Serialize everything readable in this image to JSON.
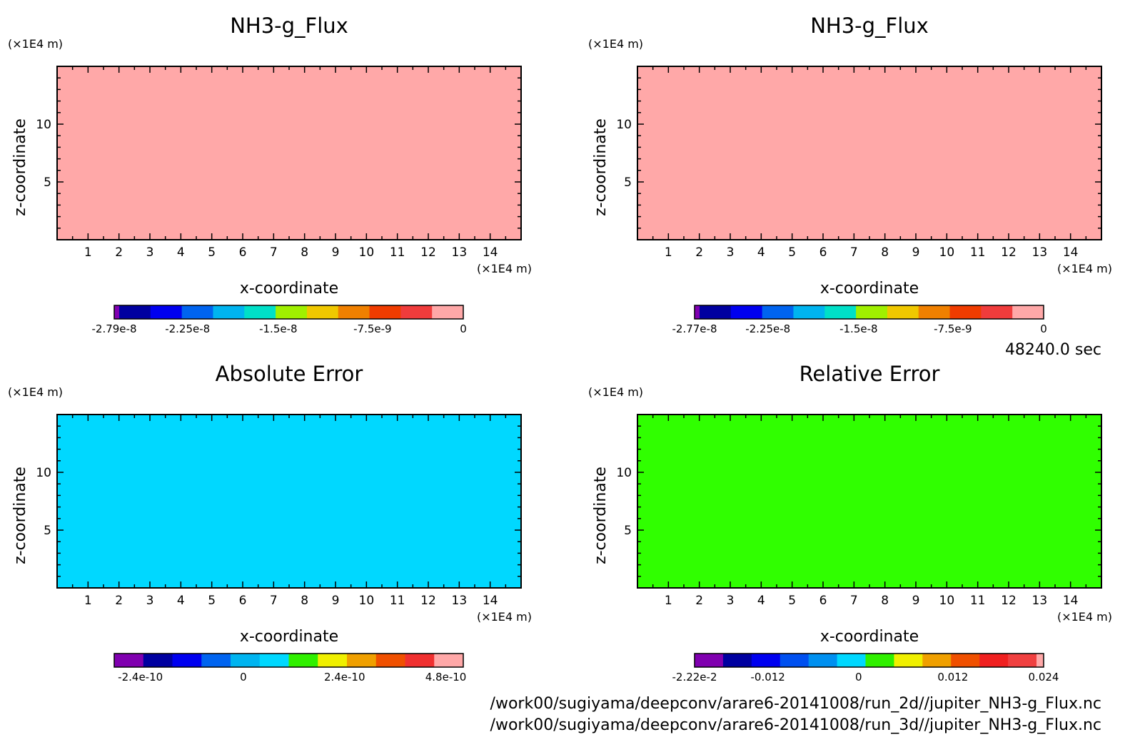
{
  "time_label": "48240.0 sec",
  "file_paths": [
    "/work00/sugiyama/deepconv/arare6-20141008/run_2d//jupiter_NH3-g_Flux.nc",
    "/work00/sugiyama/deepconv/arare6-20141008/run_3d//jupiter_NH3-g_Flux.nc"
  ],
  "chart_data": [
    {
      "type": "heatmap",
      "title": "NH3-g_Flux",
      "xlabel": "x-coordinate",
      "ylabel": "z-coordinate",
      "x_unit": "(×1E4 m)",
      "y_unit": "(×1E4 m)",
      "xlim": [
        0,
        15
      ],
      "ylim": [
        0,
        15
      ],
      "x_ticks": [
        "1",
        "2",
        "3",
        "4",
        "5",
        "6",
        "7",
        "8",
        "9",
        "10",
        "11",
        "12",
        "13",
        "14"
      ],
      "y_ticks": [
        "5",
        "10"
      ],
      "field_color": "#ffa8a8",
      "colorbar": {
        "colors": [
          "#8000b0",
          "#0000a0",
          "#0000f0",
          "#0064f0",
          "#00b4f0",
          "#00e0c8",
          "#a0f000",
          "#f0c800",
          "#f08000",
          "#f03c00",
          "#f03c3c",
          "#ffa8a8"
        ],
        "labels": [
          "-2.79e-8",
          "-2.25e-8",
          "-1.5e-8",
          "-7.5e-9",
          "0"
        ]
      }
    },
    {
      "type": "heatmap",
      "title": "NH3-g_Flux",
      "xlabel": "x-coordinate",
      "ylabel": "z-coordinate",
      "x_unit": "(×1E4 m)",
      "y_unit": "(×1E4 m)",
      "xlim": [
        0,
        15
      ],
      "ylim": [
        0,
        15
      ],
      "x_ticks": [
        "1",
        "2",
        "3",
        "4",
        "5",
        "6",
        "7",
        "8",
        "9",
        "10",
        "11",
        "12",
        "13",
        "14"
      ],
      "y_ticks": [
        "5",
        "10"
      ],
      "field_color": "#ffa8a8",
      "colorbar": {
        "colors": [
          "#8000b0",
          "#0000a0",
          "#0000f0",
          "#0064f0",
          "#00b4f0",
          "#00e0c8",
          "#a0f000",
          "#f0c800",
          "#f08000",
          "#f03c00",
          "#f03c3c",
          "#ffa8a8"
        ],
        "labels": [
          "-2.77e-8",
          "-2.25e-8",
          "-1.5e-8",
          "-7.5e-9",
          "0"
        ]
      }
    },
    {
      "type": "heatmap",
      "title": "Absolute Error",
      "xlabel": "x-coordinate",
      "ylabel": "z-coordinate",
      "x_unit": "(×1E4 m)",
      "y_unit": "(×1E4 m)",
      "xlim": [
        0,
        15
      ],
      "ylim": [
        0,
        15
      ],
      "x_ticks": [
        "1",
        "2",
        "3",
        "4",
        "5",
        "6",
        "7",
        "8",
        "9",
        "10",
        "11",
        "12",
        "13",
        "14"
      ],
      "y_ticks": [
        "5",
        "10"
      ],
      "field_color": "#00d8ff",
      "colorbar": {
        "colors": [
          "#8000b0",
          "#0000a0",
          "#0000f0",
          "#0064f0",
          "#00b4f0",
          "#00d8ff",
          "#30f000",
          "#f0f000",
          "#f0a000",
          "#f05000",
          "#f03030",
          "#ffa8a8"
        ],
        "labels": [
          "-2.4e-10",
          "0",
          "2.4e-10",
          "4.8e-10"
        ]
      }
    },
    {
      "type": "heatmap",
      "title": "Relative Error",
      "xlabel": "x-coordinate",
      "ylabel": "z-coordinate",
      "x_unit": "(×1E4 m)",
      "y_unit": "(×1E4 m)",
      "xlim": [
        0,
        15
      ],
      "ylim": [
        0,
        15
      ],
      "x_ticks": [
        "1",
        "2",
        "3",
        "4",
        "5",
        "6",
        "7",
        "8",
        "9",
        "10",
        "11",
        "12",
        "13",
        "14"
      ],
      "y_ticks": [
        "5",
        "10"
      ],
      "field_color": "#30ff00",
      "colorbar": {
        "colors": [
          "#8000b0",
          "#0000a0",
          "#0000f0",
          "#0050f0",
          "#0090f0",
          "#00d8ff",
          "#30f000",
          "#f0f000",
          "#f0a000",
          "#f05000",
          "#f02020",
          "#f04040",
          "#ffa8a8"
        ],
        "labels": [
          "-2.22e-2",
          "-0.012",
          "0",
          "0.012",
          "0.024"
        ]
      }
    }
  ]
}
